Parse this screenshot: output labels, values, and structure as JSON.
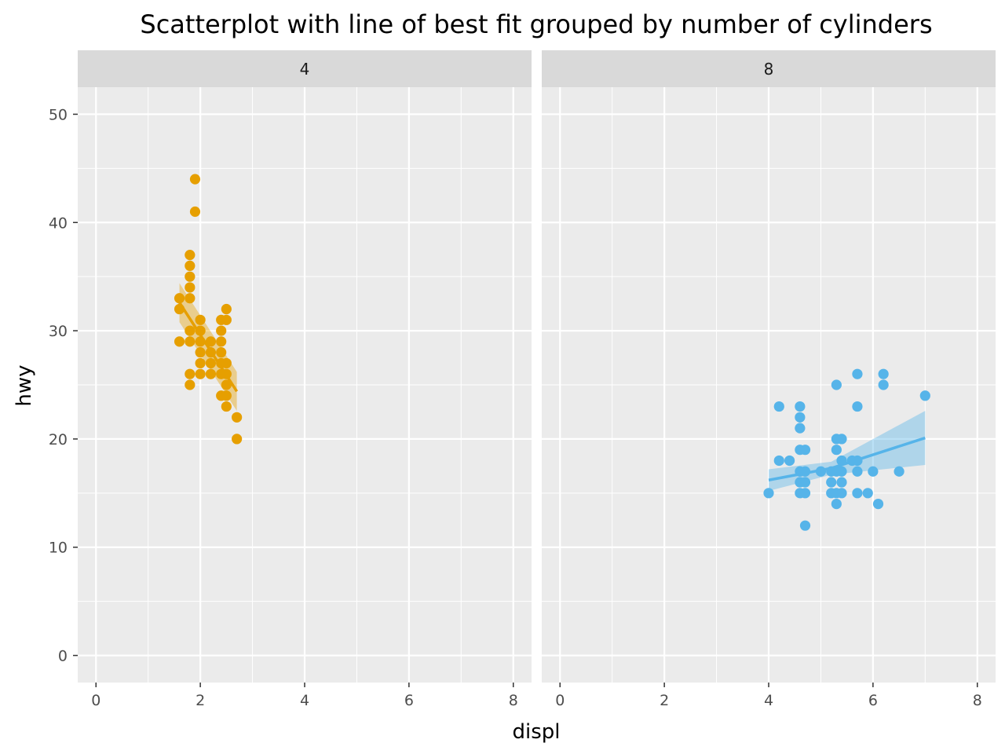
{
  "chart_data": {
    "type": "scatter",
    "title": "Scatterplot with line of best fit grouped by number of cylinders",
    "xlabel": "displ",
    "ylabel": "hwy",
    "xlim": [
      -0.35,
      8.35
    ],
    "ylim": [
      -2.5,
      52.5
    ],
    "x_ticks": [
      0,
      2,
      4,
      6,
      8
    ],
    "x_tick_labels": [
      "0",
      "2",
      "4",
      "6",
      "8"
    ],
    "y_ticks": [
      0,
      10,
      20,
      30,
      40,
      50
    ],
    "y_tick_labels": [
      "0",
      "10",
      "20",
      "30",
      "40",
      "50"
    ],
    "grid": true,
    "legend": "none",
    "panels": [
      {
        "strip_label": "4",
        "color": "#E69F00",
        "points": [
          [
            1.9,
            44
          ],
          [
            1.9,
            41
          ],
          [
            1.8,
            37
          ],
          [
            1.8,
            36
          ],
          [
            1.8,
            35
          ],
          [
            1.8,
            34
          ],
          [
            1.6,
            33
          ],
          [
            1.8,
            33
          ],
          [
            1.6,
            32
          ],
          [
            2.5,
            32
          ],
          [
            2.0,
            31
          ],
          [
            2.4,
            31
          ],
          [
            2.5,
            31
          ],
          [
            1.8,
            30
          ],
          [
            2.0,
            30
          ],
          [
            2.4,
            30
          ],
          [
            1.6,
            29
          ],
          [
            1.8,
            29
          ],
          [
            2.0,
            29
          ],
          [
            2.2,
            29
          ],
          [
            2.4,
            29
          ],
          [
            2.0,
            28
          ],
          [
            2.2,
            28
          ],
          [
            2.4,
            28
          ],
          [
            2.0,
            27
          ],
          [
            2.2,
            27
          ],
          [
            2.4,
            27
          ],
          [
            2.5,
            27
          ],
          [
            1.8,
            26
          ],
          [
            2.0,
            26
          ],
          [
            2.2,
            26
          ],
          [
            2.4,
            26
          ],
          [
            2.5,
            26
          ],
          [
            2.5,
            25
          ],
          [
            1.8,
            25
          ],
          [
            2.4,
            24
          ],
          [
            2.5,
            24
          ],
          [
            2.5,
            23
          ],
          [
            2.7,
            22
          ],
          [
            2.7,
            20
          ]
        ],
        "fit": {
          "x": [
            1.6,
            2.7
          ],
          "y": [
            32.6,
            24.4
          ],
          "ci_lower": [
            30.8,
            22.6
          ],
          "ci_upper": [
            34.4,
            26.2
          ]
        }
      },
      {
        "strip_label": "8",
        "color": "#56B4E9",
        "points": [
          [
            4.0,
            15
          ],
          [
            4.2,
            23
          ],
          [
            4.2,
            18
          ],
          [
            4.4,
            18
          ],
          [
            4.6,
            23
          ],
          [
            4.6,
            22
          ],
          [
            4.6,
            21
          ],
          [
            4.6,
            19
          ],
          [
            4.7,
            19
          ],
          [
            4.6,
            17
          ],
          [
            4.7,
            17
          ],
          [
            4.6,
            16
          ],
          [
            4.7,
            16
          ],
          [
            4.6,
            15
          ],
          [
            4.7,
            15
          ],
          [
            4.7,
            12
          ],
          [
            5.0,
            17
          ],
          [
            5.2,
            17
          ],
          [
            5.2,
            16
          ],
          [
            5.2,
            15
          ],
          [
            5.3,
            25
          ],
          [
            5.3,
            20
          ],
          [
            5.4,
            20
          ],
          [
            5.3,
            19
          ],
          [
            5.4,
            18
          ],
          [
            5.6,
            18
          ],
          [
            5.7,
            18
          ],
          [
            5.3,
            17
          ],
          [
            5.4,
            17
          ],
          [
            5.7,
            17
          ],
          [
            5.3,
            15
          ],
          [
            5.4,
            15
          ],
          [
            5.4,
            16
          ],
          [
            5.3,
            14
          ],
          [
            5.7,
            26
          ],
          [
            5.7,
            23
          ],
          [
            5.7,
            15
          ],
          [
            5.9,
            15
          ],
          [
            6.0,
            17
          ],
          [
            6.1,
            14
          ],
          [
            6.2,
            26
          ],
          [
            6.2,
            25
          ],
          [
            6.5,
            17
          ],
          [
            7.0,
            24
          ]
        ],
        "fit": {
          "x": [
            4.0,
            5.2,
            7.0
          ],
          "y": [
            16.2,
            17.3,
            20.1
          ],
          "ci_lower": [
            15.2,
            16.7,
            17.6
          ],
          "ci_upper": [
            17.2,
            17.9,
            22.6
          ]
        }
      }
    ]
  },
  "colors": {
    "panel_background": "#EBEBEB",
    "strip_background": "#D9D9D9",
    "grid": "#FFFFFF"
  }
}
